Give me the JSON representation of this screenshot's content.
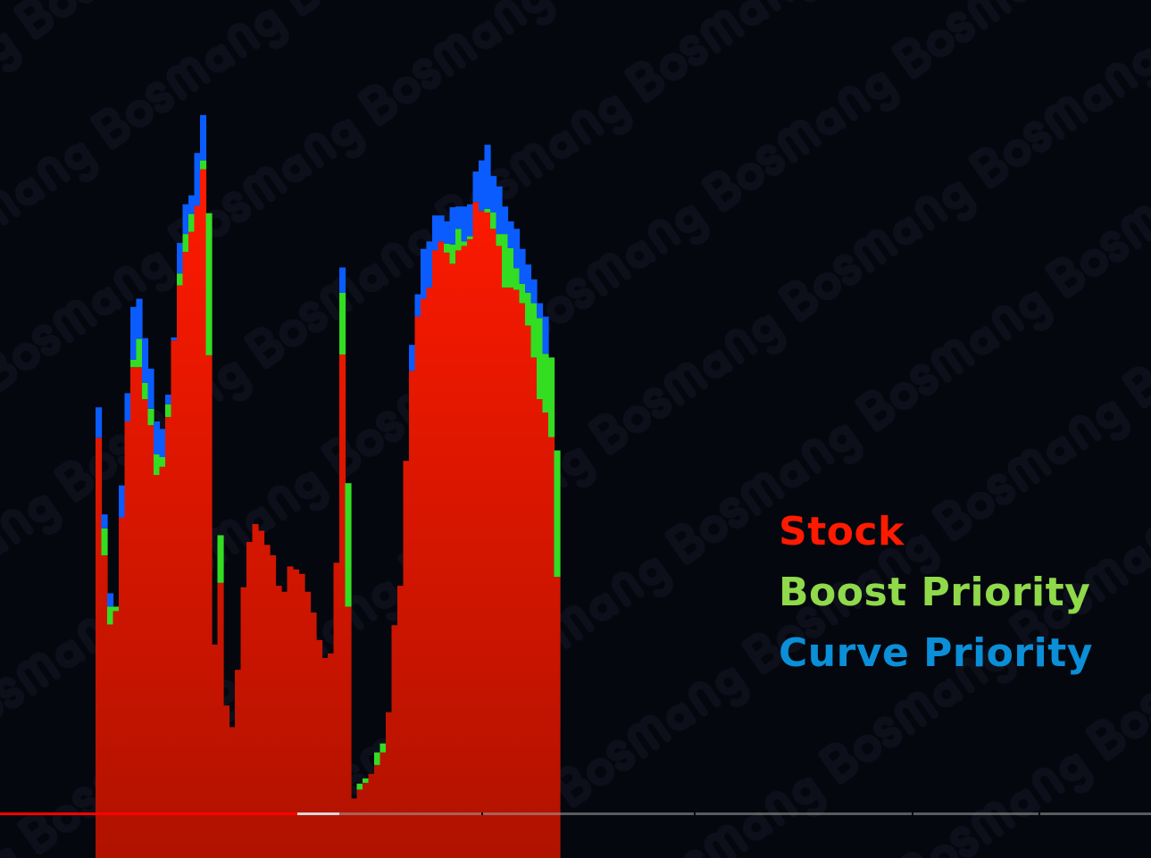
{
  "watermark": "Bosmang",
  "chart_data": {
    "type": "bar",
    "stacked": true,
    "title": "",
    "xlabel": "",
    "ylabel": "",
    "grid": false,
    "ylim": [
      0,
      100
    ],
    "legend_placement": "right",
    "series": [
      {
        "name": "Stock",
        "color": "#ff1a00",
        "values": [
          56.5,
          40.7,
          31.4,
          33.2,
          45.8,
          58.7,
          66.0,
          66.0,
          61.7,
          58.2,
          51.5,
          52.6,
          59.3,
          69.6,
          77.0,
          81.5,
          84.2,
          87.7,
          92.6,
          67.6,
          28.7,
          37.0,
          20.5,
          17.6,
          25.3,
          36.4,
          42.5,
          44.9,
          44.0,
          42.1,
          40.7,
          36.6,
          35.8,
          39.2,
          38.8,
          38.2,
          35.8,
          33.0,
          29.3,
          26.9,
          27.5,
          39.7,
          67.7,
          33.8,
          8.0,
          9.2,
          10.1,
          11.3,
          12.5,
          14.2,
          19.6,
          31.3,
          36.6,
          53.4,
          65.5,
          72.8,
          75.2,
          76.7,
          81.7,
          82.9,
          81.4,
          79.9,
          81.7,
          82.3,
          83.2,
          88.2,
          87.0,
          86.8,
          84.6,
          82.3,
          76.7,
          76.7,
          76.4,
          74.6,
          71.6,
          67.3,
          61.7,
          59.9,
          56.6,
          37.8
        ]
      },
      {
        "name": "Boost Priority",
        "color": "#33dd22",
        "values": [
          0,
          3.6,
          2.4,
          0.6,
          0,
          0,
          1.0,
          3.8,
          2.2,
          2.2,
          2.8,
          1.3,
          1.7,
          0,
          1.6,
          2.4,
          2.4,
          0,
          1.2,
          19.1,
          0,
          6.4,
          0,
          0,
          0,
          0,
          0,
          0,
          0,
          0,
          0,
          0,
          0,
          0,
          0,
          0,
          0,
          0,
          0,
          0,
          0,
          0,
          8.3,
          16.6,
          0,
          0.8,
          0.6,
          0,
          1.7,
          1.2,
          0,
          0,
          0,
          0,
          0,
          0,
          0,
          0,
          0,
          0,
          1.2,
          2.6,
          2.9,
          0.6,
          0.4,
          0,
          0,
          0.5,
          2.2,
          1.6,
          7.2,
          5.3,
          2.9,
          2.6,
          4.4,
          7.3,
          10.9,
          7.9,
          10.7,
          17.0
        ]
      },
      {
        "name": "Curve Priority",
        "color": "#0a5cff",
        "values": [
          4.1,
          1.9,
          1.8,
          0,
          4.3,
          3.8,
          7.1,
          5.4,
          6.0,
          5.4,
          4.4,
          3.8,
          1.3,
          0.4,
          4.1,
          4.0,
          2.5,
          7.1,
          6.1,
          0,
          0,
          0,
          0,
          0,
          0,
          0,
          0,
          0,
          0,
          0,
          0,
          0,
          0,
          0,
          0,
          0,
          0,
          0,
          0,
          0,
          0,
          0,
          3.4,
          0,
          0,
          0,
          0,
          0,
          0,
          0,
          0,
          0,
          0,
          0,
          3.5,
          3.0,
          6.7,
          6.2,
          4.7,
          3.5,
          3.0,
          5.0,
          3.0,
          4.7,
          4.3,
          4.1,
          6.8,
          8.6,
          4.9,
          6.4,
          3.7,
          3.6,
          5.3,
          4.7,
          3.8,
          3.2,
          2.0,
          5.0,
          0,
          0
        ]
      }
    ]
  },
  "legend": {
    "items": [
      {
        "label": "Stock",
        "color": "#ff1a00"
      },
      {
        "label": "Boost Priority",
        "color": "#8fd94a"
      },
      {
        "label": "Curve Priority",
        "color": "#0a8fd8"
      }
    ]
  },
  "video_progress": {
    "played_pct": 25.8,
    "buffered_pct": 29.5,
    "chapter_marks_pct": [
      41.8,
      60.3,
      79.2,
      90.2
    ]
  }
}
